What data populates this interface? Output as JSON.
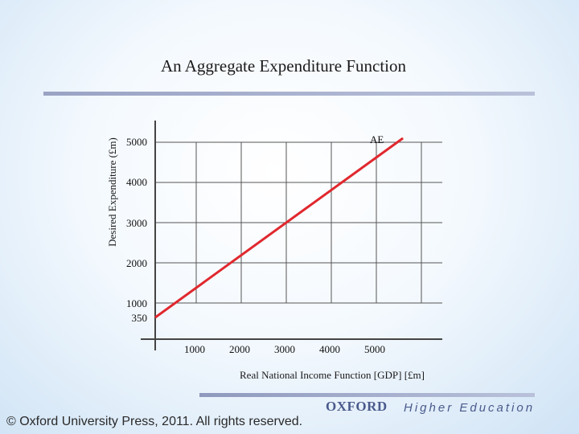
{
  "slide": {
    "title": "An Aggregate Expenditure Function",
    "copyright": "© Oxford University Press, 2011. All rights reserved.",
    "brand_name": "OXFORD",
    "brand_sub": "Higher Education"
  },
  "chart_data": {
    "type": "line",
    "title": "An Aggregate Expenditure Function",
    "xlabel": "Real National Income Function [GDP] [£m]",
    "ylabel": "Desired Expenditure (£m)",
    "x_ticks": [
      "1000",
      "2000",
      "3000",
      "4000",
      "5000"
    ],
    "y_ticks": [
      "350",
      "1000",
      "2000",
      "3000",
      "4000",
      "5000"
    ],
    "grid": true,
    "series": [
      {
        "name": "AE",
        "color": "#e0282e",
        "points": [
          {
            "x": 0,
            "y": 350
          },
          {
            "x": 5500,
            "y": 5100
          }
        ]
      }
    ]
  }
}
